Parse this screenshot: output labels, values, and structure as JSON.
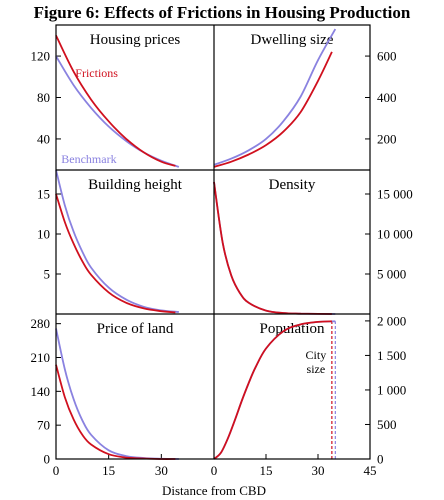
{
  "figure": {
    "title": "Figure 6: Effects of Frictions in Housing Production",
    "xlabel": "Distance from CBD"
  },
  "colors": {
    "frictions": "#d0101e",
    "benchmark": "#8a82e0",
    "city_size_marker": "#c43050"
  },
  "chart_data": [
    {
      "type": "line",
      "title": "Housing prices",
      "position": "top-left",
      "xlim": [
        0,
        45
      ],
      "ylim": [
        10,
        150
      ],
      "y_axis": "left",
      "yticks": [
        40,
        80,
        120
      ],
      "ytick_labels": [
        "40",
        "80",
        "120"
      ],
      "series": [
        {
          "name": "Frictions",
          "x": [
            0,
            5,
            10,
            15,
            20,
            25,
            30,
            34
          ],
          "y": [
            140,
            105,
            78,
            57,
            40,
            27,
            18,
            14
          ]
        },
        {
          "name": "Benchmark",
          "x": [
            0,
            5,
            10,
            15,
            20,
            25,
            30,
            35
          ],
          "y": [
            120,
            92,
            70,
            52,
            38,
            27,
            19,
            13
          ]
        }
      ],
      "annotations": [
        "Frictions",
        "Benchmark"
      ]
    },
    {
      "type": "line",
      "title": "Dwelling size",
      "position": "top-right",
      "xlim": [
        0,
        45
      ],
      "ylim": [
        50,
        750
      ],
      "y_axis": "right",
      "yticks": [
        200,
        400,
        600
      ],
      "ytick_labels": [
        "200",
        "400",
        "600"
      ],
      "series": [
        {
          "name": "Frictions",
          "x": [
            0,
            5,
            10,
            15,
            20,
            25,
            30,
            34
          ],
          "y": [
            65,
            90,
            125,
            170,
            235,
            330,
            480,
            620
          ]
        },
        {
          "name": "Benchmark",
          "x": [
            0,
            5,
            10,
            15,
            20,
            25,
            30,
            35
          ],
          "y": [
            75,
            105,
            145,
            200,
            285,
            405,
            580,
            730
          ]
        }
      ]
    },
    {
      "type": "line",
      "title": "Building height",
      "position": "middle-left",
      "xlim": [
        0,
        45
      ],
      "ylim": [
        0,
        18
      ],
      "y_axis": "left",
      "yticks": [
        5,
        10,
        15
      ],
      "ytick_labels": [
        "5",
        "10",
        "15"
      ],
      "series": [
        {
          "name": "Frictions",
          "x": [
            0,
            2.5,
            5,
            7.5,
            10,
            15,
            20,
            25,
            30,
            34
          ],
          "y": [
            15,
            11.5,
            8.8,
            6.6,
            4.9,
            2.7,
            1.4,
            0.7,
            0.35,
            0.2
          ]
        },
        {
          "name": "Benchmark",
          "x": [
            0,
            2.5,
            5,
            7.5,
            10,
            15,
            20,
            25,
            30,
            35
          ],
          "y": [
            18,
            13.6,
            10.3,
            7.8,
            5.8,
            3.3,
            1.8,
            0.9,
            0.45,
            0.25
          ]
        }
      ]
    },
    {
      "type": "line",
      "title": "Density",
      "position": "middle-right",
      "xlim": [
        0,
        45
      ],
      "ylim": [
        0,
        18000
      ],
      "y_axis": "right",
      "yticks": [
        5000,
        10000,
        15000
      ],
      "ytick_labels": [
        "5 000",
        "10 000",
        "15 000"
      ],
      "series": [
        {
          "name": "Frictions",
          "x": [
            0,
            2.5,
            5,
            7.5,
            10,
            15,
            20,
            25,
            30,
            34
          ],
          "y": [
            16500,
            8900,
            4800,
            2600,
            1400,
            420,
            130,
            40,
            15,
            5
          ]
        },
        {
          "name": "Benchmark",
          "x": [
            0,
            2.5,
            5,
            7.5,
            10,
            15,
            20,
            25,
            30,
            35
          ],
          "y": [
            16500,
            8900,
            4800,
            2600,
            1400,
            420,
            130,
            40,
            15,
            5
          ]
        }
      ]
    },
    {
      "type": "line",
      "title": "Price of land",
      "position": "bottom-left",
      "xlim": [
        0,
        45
      ],
      "ylim": [
        0,
        300
      ],
      "y_axis": "left",
      "xticks": [
        0,
        15,
        30
      ],
      "xtick_labels": [
        "0",
        "15",
        "30"
      ],
      "yticks": [
        0,
        70,
        140,
        210,
        280
      ],
      "ytick_labels": [
        "0",
        "70",
        "140",
        "210",
        "280"
      ],
      "series": [
        {
          "name": "Frictions",
          "x": [
            0,
            2.5,
            5,
            7.5,
            10,
            15,
            20,
            25,
            30,
            34
          ],
          "y": [
            195,
            128,
            82,
            50,
            30,
            10,
            3,
            1,
            0,
            0
          ]
        },
        {
          "name": "Benchmark",
          "x": [
            0,
            2.5,
            5,
            7.5,
            10,
            15,
            20,
            25,
            30,
            35
          ],
          "y": [
            270,
            186,
            124,
            80,
            50,
            18,
            6,
            2,
            0.5,
            0
          ]
        }
      ]
    },
    {
      "type": "line",
      "title": "Population",
      "position": "bottom-right",
      "xlim": [
        0,
        45
      ],
      "ylim": [
        0,
        2100
      ],
      "y_axis": "right",
      "xticks": [
        0,
        15,
        30,
        45
      ],
      "xtick_labels": [
        "0",
        "15",
        "30",
        "45"
      ],
      "yticks": [
        0,
        500,
        1000,
        1500,
        2000
      ],
      "ytick_labels": [
        "0",
        "500",
        "1 000",
        "1 500",
        "2 000"
      ],
      "series": [
        {
          "name": "Frictions",
          "x": [
            0,
            2,
            4,
            6,
            8,
            10,
            12,
            15,
            20,
            25,
            30,
            34
          ],
          "y": [
            0,
            90,
            300,
            560,
            840,
            1100,
            1330,
            1600,
            1850,
            1950,
            1985,
            1995
          ]
        },
        {
          "name": "Benchmark",
          "x": [
            0,
            2,
            4,
            6,
            8,
            10,
            12,
            15,
            20,
            25,
            30,
            35
          ],
          "y": [
            0,
            90,
            300,
            560,
            840,
            1100,
            1330,
            1600,
            1850,
            1950,
            1985,
            1995
          ]
        }
      ],
      "markers": [
        {
          "label": "City size",
          "frictions_x": 34,
          "benchmark_x": 35
        }
      ]
    }
  ]
}
